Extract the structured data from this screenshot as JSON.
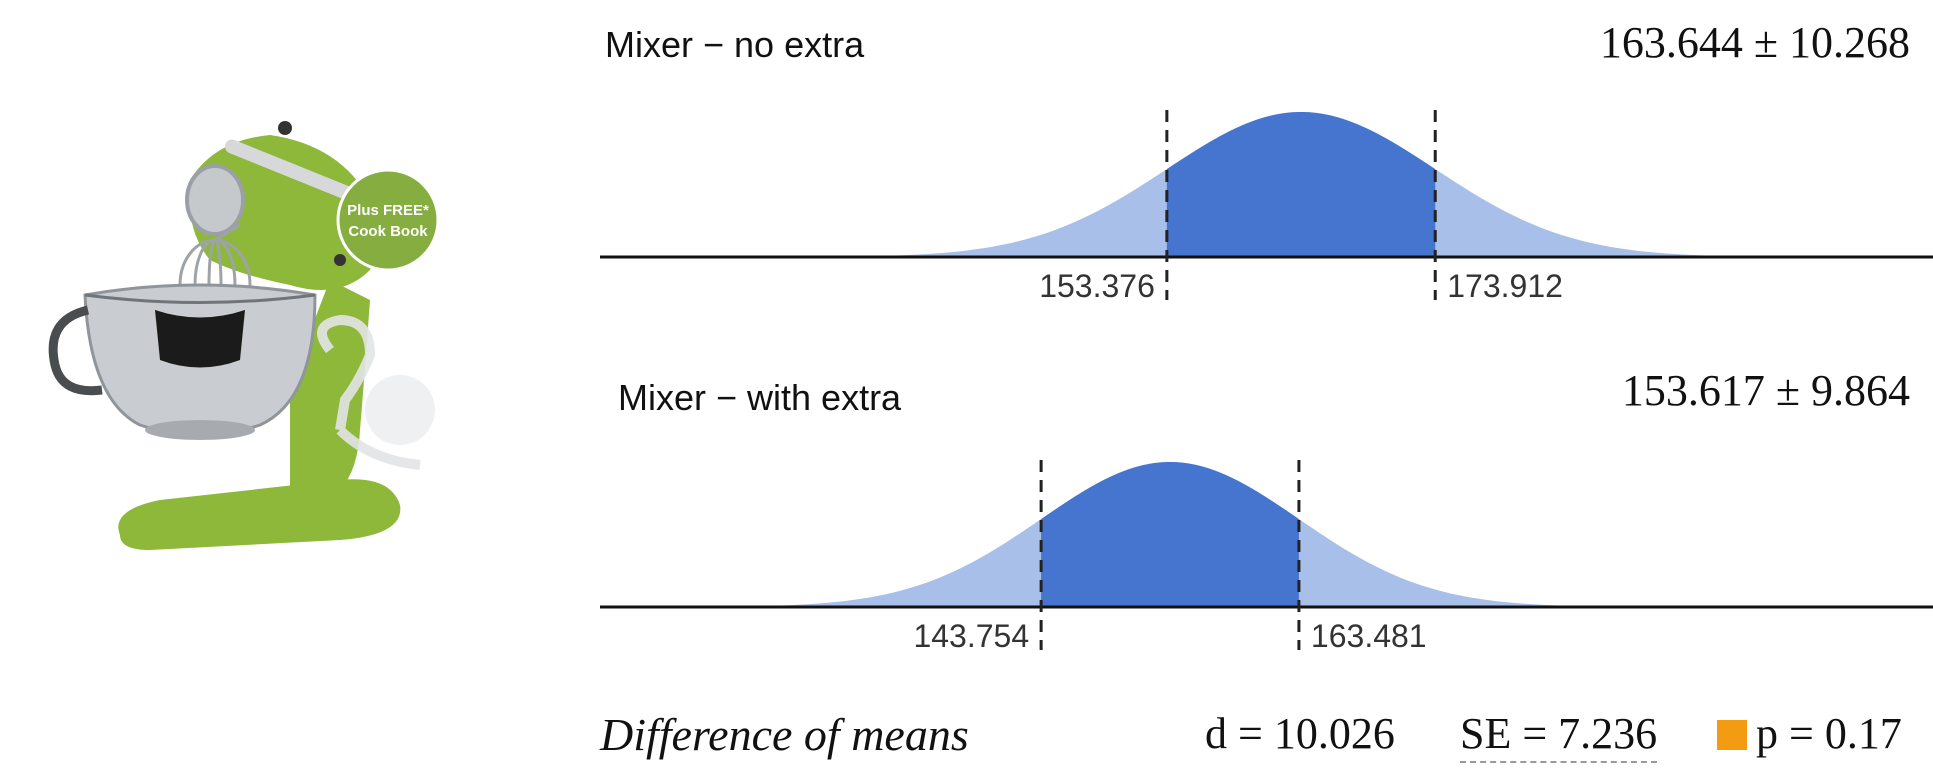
{
  "product": {
    "badge_lines": [
      "Plus FREE*",
      "Cook Book"
    ],
    "colors": {
      "mixer": "#8db83a",
      "badge": "#86ad3f",
      "bowl": "#c9ccd0"
    }
  },
  "chart_data": [
    {
      "type": "area",
      "title": "Mixer − no extra",
      "summary": "163.644 ± 10.268",
      "mean": 163.644,
      "sd": 10.268,
      "interval": [
        153.376,
        173.912
      ],
      "interval_labels": [
        "153.376",
        "173.912"
      ],
      "xlim": [
        110,
        212
      ],
      "color": "#4675cf",
      "tail_color": "#a7bfe9"
    },
    {
      "type": "area",
      "title": "Mixer − with extra",
      "summary": "153.617 ± 9.864",
      "mean": 153.617,
      "sd": 9.864,
      "interval": [
        143.754,
        163.481
      ],
      "interval_labels": [
        "143.754",
        "163.481"
      ],
      "xlim": [
        110,
        212
      ],
      "color": "#4675cf",
      "tail_color": "#a7bfe9"
    }
  ],
  "comparison": {
    "title": "Difference of means",
    "d_text": "d = 10.026",
    "se_text": "SE = 7.236",
    "p_text": "p = 0.17",
    "p_color": "#f39c12"
  }
}
